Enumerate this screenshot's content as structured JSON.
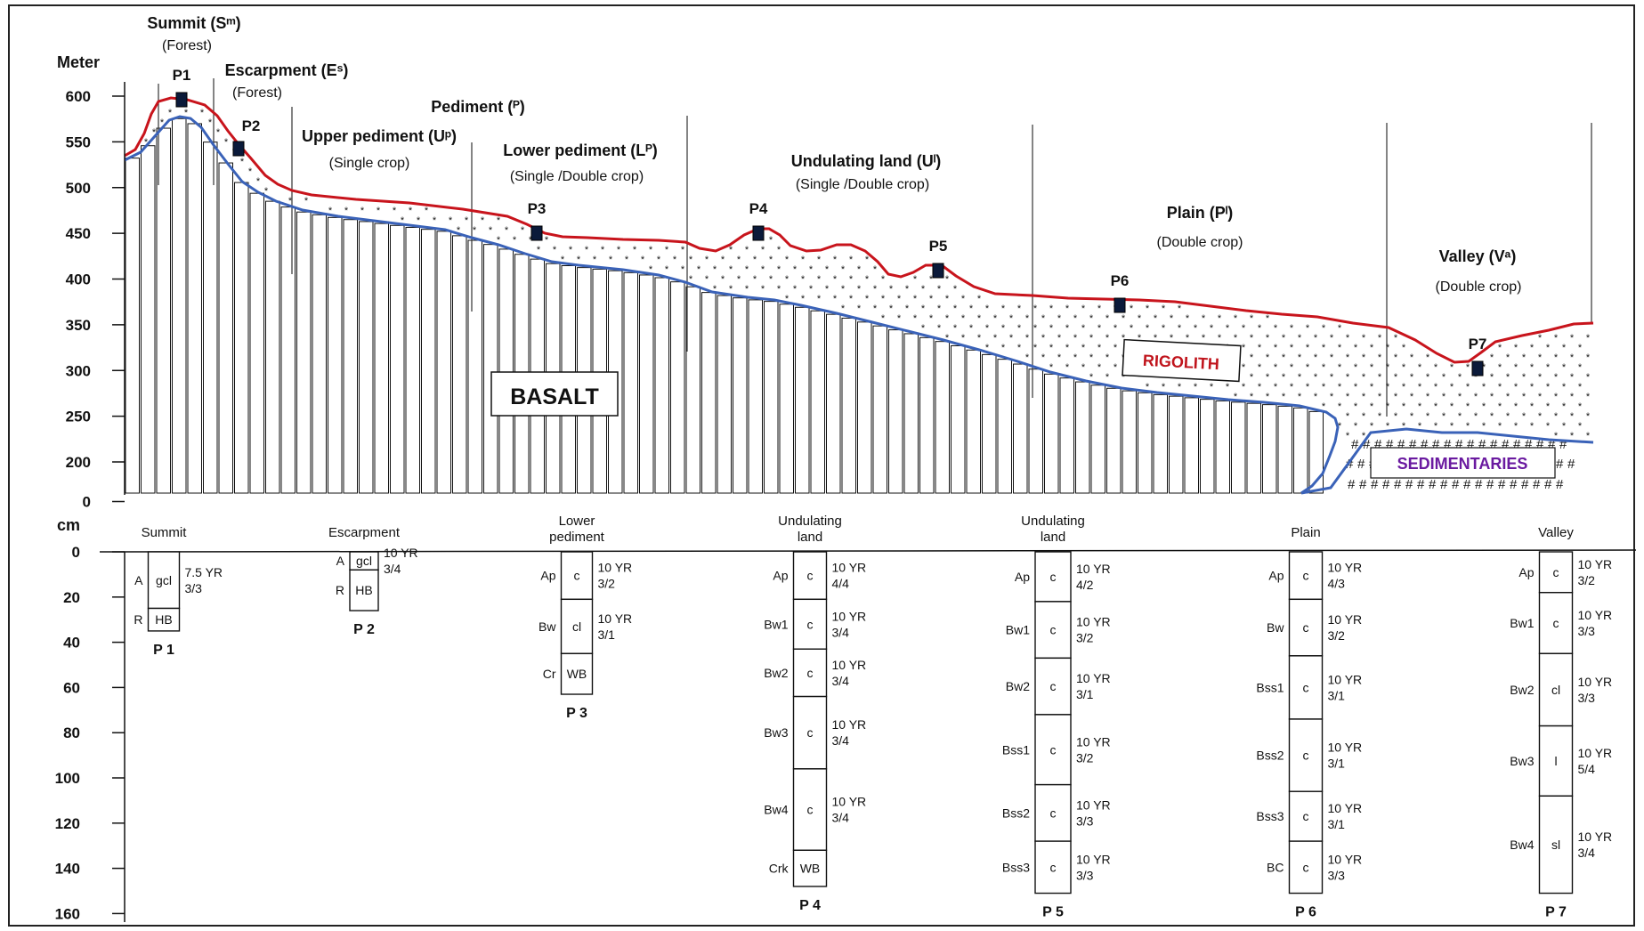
{
  "axes": {
    "elevation_unit": "Meter",
    "depth_unit": "cm",
    "elevation_ticks": [
      {
        "label": "600",
        "value": 600
      },
      {
        "label": "550",
        "value": 550
      },
      {
        "label": "500",
        "value": 500
      },
      {
        "label": "450",
        "value": 450
      },
      {
        "label": "400",
        "value": 400
      },
      {
        "label": "350",
        "value": 350
      },
      {
        "label": "300",
        "value": 300
      },
      {
        "label": "250",
        "value": 250
      },
      {
        "label": "200",
        "value": 200
      },
      {
        "label": "0",
        "value": 150
      }
    ],
    "depth_ticks": [
      "0",
      "20",
      "40",
      "60",
      "80",
      "100",
      "120",
      "140",
      "160"
    ]
  },
  "landforms": [
    {
      "title": "Summit (Sᵐ)",
      "crop": "(Forest)"
    },
    {
      "title": "Escarpment (Eˢ)",
      "crop": "(Forest)"
    },
    {
      "title": "Pediment (ᴾ)",
      "crop": ""
    },
    {
      "title": "Upper pediment (Uᵖ)",
      "crop": "(Single crop)"
    },
    {
      "title": "Lower pediment (Lᴾ)",
      "crop": "(Single /Double crop)"
    },
    {
      "title": "Undulating land (Uˡ)",
      "crop": "(Single /Double crop)"
    },
    {
      "title": "Plain (Pˡ)",
      "crop": "(Double crop)"
    },
    {
      "title": "Valley (Vᵃ)",
      "crop": "(Double crop)"
    }
  ],
  "profile_points": [
    "P1",
    "P2",
    "P3",
    "P4",
    "P5",
    "P6",
    "P7"
  ],
  "materials": {
    "basalt": "BASALT",
    "rigolith": "RIGOLITH",
    "sedimentaries": "SEDIMENTARIES",
    "hash": "#"
  },
  "colors": {
    "surface": "#c8141c",
    "weathering_front": "#3a62b8",
    "rigolith_text": "#c0141c",
    "sediment_text": "#6a1aa0"
  },
  "pedons": [
    {
      "id": "P 1",
      "landform": "Summit",
      "landform_lines": [
        "Summit"
      ],
      "depth_cm": 35,
      "horizons": [
        {
          "name": "A",
          "texture": "gcl",
          "top": 0,
          "bottom": 25,
          "color": [
            "7.5 YR",
            "3/3"
          ]
        },
        {
          "name": "R",
          "texture": "HB",
          "top": 25,
          "bottom": 35,
          "color": null
        }
      ]
    },
    {
      "id": "P 2",
      "landform": "Escarpment",
      "landform_lines": [
        "Escarpment"
      ],
      "depth_cm": 26,
      "horizons": [
        {
          "name": "A",
          "texture": "gcl",
          "top": 0,
          "bottom": 8,
          "color": [
            "10 YR",
            "3/4"
          ]
        },
        {
          "name": "R",
          "texture": "HB",
          "top": 8,
          "bottom": 26,
          "color": null
        }
      ]
    },
    {
      "id": "P 3",
      "landform": "Lower pediment",
      "landform_lines": [
        "Lower",
        "pediment"
      ],
      "depth_cm": 63,
      "horizons": [
        {
          "name": "Ap",
          "texture": "c",
          "top": 0,
          "bottom": 21,
          "color": [
            "10 YR",
            "3/2"
          ]
        },
        {
          "name": "Bw",
          "texture": "cl",
          "top": 21,
          "bottom": 45,
          "color": [
            "10 YR",
            "3/1"
          ]
        },
        {
          "name": "Cr",
          "texture": "WB",
          "top": 45,
          "bottom": 63,
          "color": null
        }
      ]
    },
    {
      "id": "P 4",
      "landform": "Undulating land",
      "landform_lines": [
        "Undulating",
        "land"
      ],
      "depth_cm": 148,
      "horizons": [
        {
          "name": "Ap",
          "texture": "c",
          "top": 0,
          "bottom": 21,
          "color": [
            "10 YR",
            "4/4"
          ]
        },
        {
          "name": "Bw1",
          "texture": "c",
          "top": 21,
          "bottom": 43,
          "color": [
            "10 YR",
            "3/4"
          ]
        },
        {
          "name": "Bw2",
          "texture": "c",
          "top": 43,
          "bottom": 64,
          "color": [
            "10 YR",
            "3/4"
          ]
        },
        {
          "name": "Bw3",
          "texture": "c",
          "top": 64,
          "bottom": 96,
          "color": [
            "10 YR",
            "3/4"
          ]
        },
        {
          "name": "Bw4",
          "texture": "c",
          "top": 96,
          "bottom": 132,
          "color": [
            "10 YR",
            "3/4"
          ]
        },
        {
          "name": "Crk",
          "texture": "WB",
          "top": 132,
          "bottom": 148,
          "color": null
        }
      ]
    },
    {
      "id": "P 5",
      "landform": "Undulating land",
      "landform_lines": [
        "Undulating",
        "land"
      ],
      "depth_cm": 151,
      "horizons": [
        {
          "name": "Ap",
          "texture": "c",
          "top": 0,
          "bottom": 22,
          "color": [
            "10 YR",
            "4/2"
          ]
        },
        {
          "name": "Bw1",
          "texture": "c",
          "top": 22,
          "bottom": 47,
          "color": [
            "10 YR",
            "3/2"
          ]
        },
        {
          "name": "Bw2",
          "texture": "c",
          "top": 47,
          "bottom": 72,
          "color": [
            "10 YR",
            "3/1"
          ]
        },
        {
          "name": "Bss1",
          "texture": "c",
          "top": 72,
          "bottom": 103,
          "color": [
            "10 YR",
            "3/2"
          ]
        },
        {
          "name": "Bss2",
          "texture": "c",
          "top": 103,
          "bottom": 128,
          "color": [
            "10 YR",
            "3/3"
          ]
        },
        {
          "name": "Bss3",
          "texture": "c",
          "top": 128,
          "bottom": 151,
          "color": [
            "10 YR",
            "3/3"
          ]
        }
      ]
    },
    {
      "id": "P 6",
      "landform": "Plain",
      "landform_lines": [
        "Plain"
      ],
      "depth_cm": 151,
      "horizons": [
        {
          "name": "Ap",
          "texture": "c",
          "top": 0,
          "bottom": 21,
          "color": [
            "10 YR",
            "4/3"
          ]
        },
        {
          "name": "Bw",
          "texture": "c",
          "top": 21,
          "bottom": 46,
          "color": [
            "10 YR",
            "3/2"
          ]
        },
        {
          "name": "Bss1",
          "texture": "c",
          "top": 46,
          "bottom": 74,
          "color": [
            "10 YR",
            "3/1"
          ]
        },
        {
          "name": "Bss2",
          "texture": "c",
          "top": 74,
          "bottom": 106,
          "color": [
            "10 YR",
            "3/1"
          ]
        },
        {
          "name": "Bss3",
          "texture": "c",
          "top": 106,
          "bottom": 128,
          "color": [
            "10 YR",
            "3/1"
          ]
        },
        {
          "name": "BC",
          "texture": "c",
          "top": 128,
          "bottom": 151,
          "color": [
            "10 YR",
            "3/3"
          ]
        }
      ]
    },
    {
      "id": "P 7",
      "landform": "Valley",
      "landform_lines": [
        "Valley"
      ],
      "depth_cm": 151,
      "horizons": [
        {
          "name": "Ap",
          "texture": "c",
          "top": 0,
          "bottom": 18,
          "color": [
            "10 YR",
            "3/2"
          ]
        },
        {
          "name": "Bw1",
          "texture": "c",
          "top": 18,
          "bottom": 45,
          "color": [
            "10 YR",
            "3/3"
          ]
        },
        {
          "name": "Bw2",
          "texture": "cl",
          "top": 45,
          "bottom": 77,
          "color": [
            "10 YR",
            "3/3"
          ]
        },
        {
          "name": "Bw3",
          "texture": "l",
          "top": 77,
          "bottom": 108,
          "color": [
            "10 YR",
            "5/4"
          ]
        },
        {
          "name": "Bw4",
          "texture": "sl",
          "top": 108,
          "bottom": 151,
          "color": [
            "10 YR",
            "3/4"
          ]
        }
      ]
    }
  ]
}
